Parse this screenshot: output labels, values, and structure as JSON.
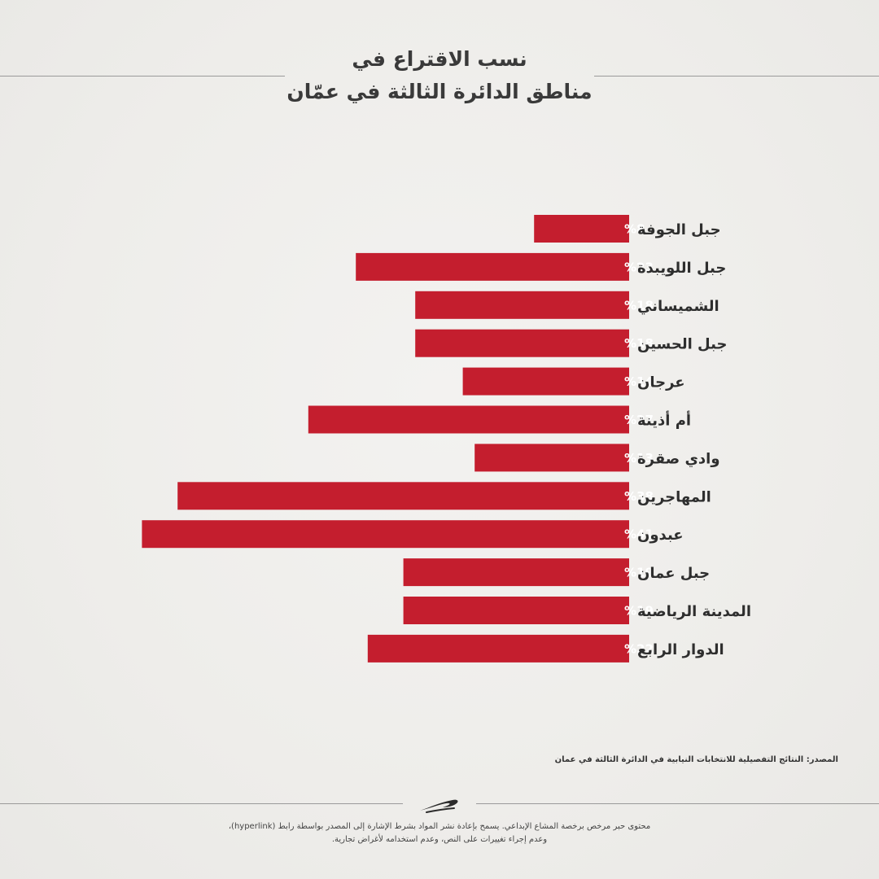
{
  "title": {
    "line1": "نسب الاقتراع في",
    "line2": "مناطق الدائرة الثالثة في عمّان"
  },
  "chart_data": {
    "type": "bar",
    "orientation": "horizontal",
    "title": "نسب الاقتراع في مناطق الدائرة الثالثة في عمّان",
    "xlabel": "",
    "ylabel": "",
    "unit": "%",
    "grid": false,
    "categories": [
      "جبل الجوفة",
      "جبل اللويبدة",
      "الشميساني",
      "جبل الحسين",
      "عرجان",
      "أم أذينة",
      "وادي صقرة",
      "المهاجرين",
      "عبدون",
      "جبل عمان",
      "المدينة الرياضية",
      "الدوار الرابع"
    ],
    "values": [
      8,
      23,
      18,
      18,
      14,
      27,
      13,
      38,
      41,
      19,
      19,
      22
    ],
    "value_labels": [
      "%8",
      "%23",
      "%18",
      "%18",
      "%14",
      "%27",
      "%13",
      "%38",
      "%41",
      "%19",
      "%19",
      "%22"
    ],
    "bar_color": "#c41e2e"
  },
  "footer": {
    "source": "المصدر: النتائج التفصيلية للانتخابات النيابية في الدائرة الثالثة في عمان",
    "license_line1": "محتوى حبر مرخص برخصة المشاع الإبداعي. يسمح بإعادة نشر المواد بشرط الإشارة إلى المصدر بواسطة رابط (hyperlink)،",
    "license_line2": "وعدم إجراء تغييرات على النص، وعدم استخدامه لأغراض تجارية."
  },
  "colors": {
    "accent": "#c41e2e",
    "background": "#efeeec",
    "text": "#333333"
  },
  "icons": {
    "logo": "hibr-logo-icon"
  }
}
